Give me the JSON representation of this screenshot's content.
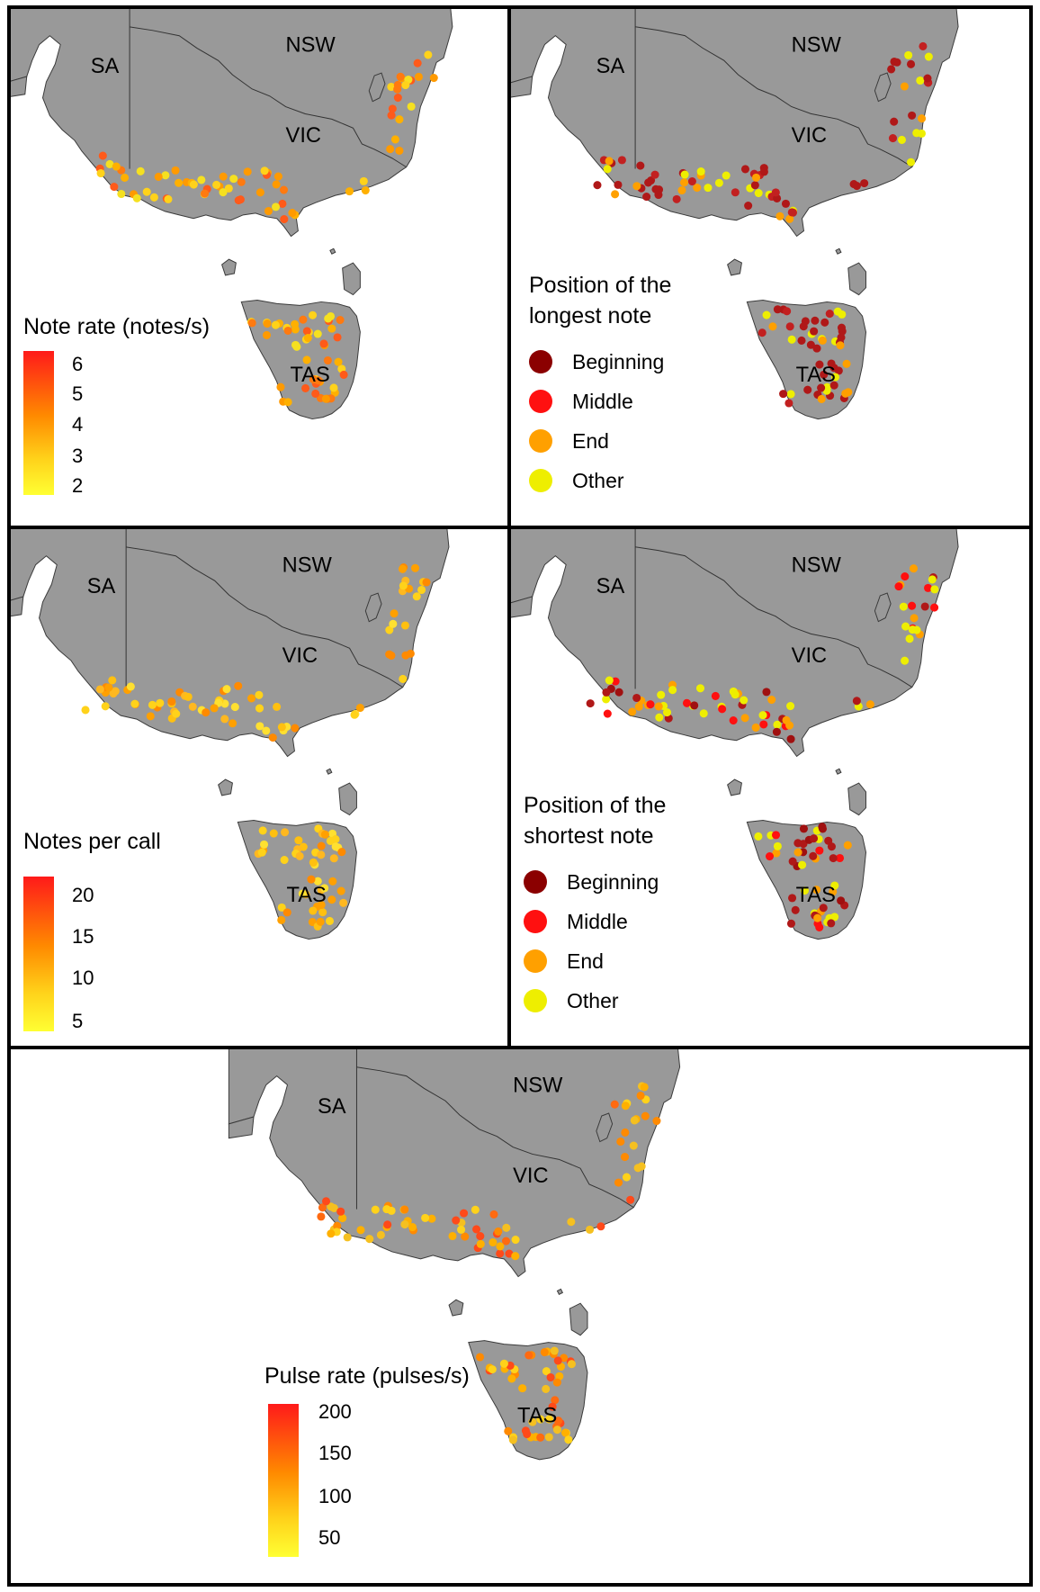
{
  "regions": {
    "sa": "SA",
    "nsw": "NSW",
    "vic": "VIC",
    "tas": "TAS"
  },
  "panels": {
    "note_rate": {
      "legend_title": "Note rate (notes/s)",
      "ticks": [
        "6",
        "5",
        "4",
        "3",
        "2"
      ]
    },
    "longest_note": {
      "legend_title_line1": "Position of the",
      "legend_title_line2": "longest note",
      "categories": [
        {
          "label": "Beginning",
          "color": "#8b0000"
        },
        {
          "label": "Middle",
          "color": "#ff1010"
        },
        {
          "label": "End",
          "color": "#ffa000"
        },
        {
          "label": "Other",
          "color": "#eeee00"
        }
      ]
    },
    "notes_per_call": {
      "legend_title": "Notes per call",
      "ticks": [
        "20",
        "15",
        "10",
        "5"
      ]
    },
    "shortest_note": {
      "legend_title_line1": "Position of the",
      "legend_title_line2": "shortest note",
      "categories": [
        {
          "label": "Beginning",
          "color": "#8b0000"
        },
        {
          "label": "Middle",
          "color": "#ff1010"
        },
        {
          "label": "End",
          "color": "#ffa000"
        },
        {
          "label": "Other",
          "color": "#eeee00"
        }
      ]
    },
    "pulse_rate": {
      "legend_title": "Pulse rate (pulses/s)",
      "ticks": [
        "200",
        "150",
        "100",
        "50"
      ]
    }
  },
  "colors": {
    "land": "#999999",
    "border": "#3a3a3a"
  }
}
